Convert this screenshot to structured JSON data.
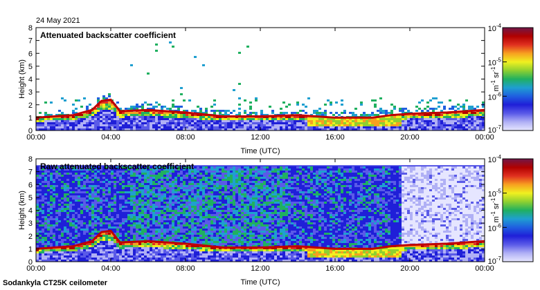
{
  "header": {
    "date": "24 May 2021"
  },
  "footer": {
    "instrument": "Sodankyla CT25K ceilometer"
  },
  "colorbar": {
    "unit_base": "m",
    "unit_exp1": "-1",
    "unit_mid": " sr",
    "unit_exp2": "-1",
    "ticks": [
      {
        "base": "10",
        "exp": "-4"
      },
      {
        "base": "10",
        "exp": "-5"
      },
      {
        "base": "10",
        "exp": "-6"
      },
      {
        "base": "10",
        "exp": "-7"
      }
    ],
    "colors": [
      "#e6e6ff",
      "#b0b0f5",
      "#5a5ae8",
      "#1f1fd8",
      "#1f5fe0",
      "#1f9fd0",
      "#20b060",
      "#8fd030",
      "#f0f020",
      "#f7a020",
      "#e03020",
      "#b00000",
      "#701848"
    ]
  },
  "chart_data": [
    {
      "type": "heatmap",
      "title": "Attenuated backscatter coefficient",
      "xlabel": "Time (UTC)",
      "ylabel": "Height (km)",
      "xticks": [
        "00:00",
        "04:00",
        "08:00",
        "12:00",
        "16:00",
        "20:00",
        "00:00"
      ],
      "yticks": [
        "0",
        "1",
        "2",
        "3",
        "4",
        "5",
        "6",
        "7",
        "8"
      ],
      "xlim_hours": [
        0,
        24
      ],
      "ylim_km": [
        0,
        8
      ],
      "color_scale": "log",
      "clim": [
        1e-07,
        0.0001
      ],
      "boundary_layer_top_km": [
        {
          "t": 0,
          "h": 1.0
        },
        {
          "t": 1,
          "h": 1.1
        },
        {
          "t": 2,
          "h": 1.2
        },
        {
          "t": 3,
          "h": 1.6
        },
        {
          "t": 3.5,
          "h": 2.3
        },
        {
          "t": 4,
          "h": 2.4
        },
        {
          "t": 4.5,
          "h": 1.5
        },
        {
          "t": 6,
          "h": 1.6
        },
        {
          "t": 7,
          "h": 1.5
        },
        {
          "t": 8,
          "h": 1.4
        },
        {
          "t": 10,
          "h": 1.1
        },
        {
          "t": 12,
          "h": 1.1
        },
        {
          "t": 14,
          "h": 1.2
        },
        {
          "t": 16,
          "h": 1.0
        },
        {
          "t": 18,
          "h": 1.0
        },
        {
          "t": 19,
          "h": 1.2
        },
        {
          "t": 20,
          "h": 1.3
        },
        {
          "t": 22,
          "h": 1.4
        },
        {
          "t": 24,
          "h": 1.6
        }
      ]
    },
    {
      "type": "heatmap",
      "title": "Raw attenuated backscatter coefficient",
      "xlabel": "Time (UTC)",
      "ylabel": "Height (km)",
      "xticks": [
        "00:00",
        "04:00",
        "08:00",
        "12:00",
        "16:00",
        "20:00",
        "00:00"
      ],
      "yticks": [
        "0",
        "1",
        "2",
        "3",
        "4",
        "5",
        "6",
        "7",
        "8"
      ],
      "xlim_hours": [
        0,
        24
      ],
      "ylim_km": [
        0,
        8
      ],
      "color_scale": "log",
      "clim": [
        1e-07,
        0.0001
      ],
      "boundary_layer_top_km": [
        {
          "t": 0,
          "h": 1.0
        },
        {
          "t": 1,
          "h": 1.1
        },
        {
          "t": 2,
          "h": 1.2
        },
        {
          "t": 3,
          "h": 1.6
        },
        {
          "t": 3.5,
          "h": 2.3
        },
        {
          "t": 4,
          "h": 2.4
        },
        {
          "t": 4.5,
          "h": 1.5
        },
        {
          "t": 6,
          "h": 1.6
        },
        {
          "t": 7,
          "h": 1.5
        },
        {
          "t": 8,
          "h": 1.4
        },
        {
          "t": 10,
          "h": 1.1
        },
        {
          "t": 12,
          "h": 1.1
        },
        {
          "t": 14,
          "h": 1.2
        },
        {
          "t": 16,
          "h": 1.0
        },
        {
          "t": 18,
          "h": 1.0
        },
        {
          "t": 19,
          "h": 1.2
        },
        {
          "t": 20,
          "h": 1.3
        },
        {
          "t": 22,
          "h": 1.4
        },
        {
          "t": 24,
          "h": 1.6
        }
      ]
    }
  ]
}
